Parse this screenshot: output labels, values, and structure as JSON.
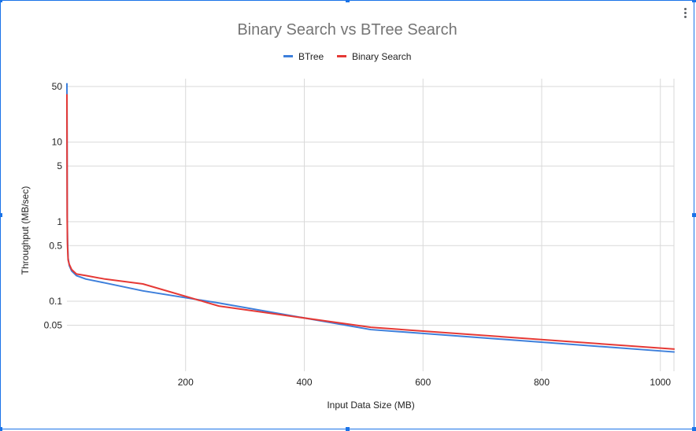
{
  "chart_data": {
    "type": "line",
    "title": "Binary Search vs BTree Search",
    "xlabel": "Input Data Size (MB)",
    "ylabel": "Throughput (MB/sec)",
    "x_scale": "linear",
    "y_scale": "log",
    "xlim": [
      0,
      1024
    ],
    "ylim": [
      0.02,
      60
    ],
    "x_ticks": [
      "200",
      "400",
      "600",
      "800",
      "1000"
    ],
    "x_tick_values": [
      200,
      400,
      600,
      800,
      1000
    ],
    "y_ticks": [
      "50",
      "10",
      "5",
      "1",
      "0.5",
      "0.1",
      "0.05"
    ],
    "y_tick_values": [
      50,
      10,
      5,
      1,
      0.5,
      0.1,
      0.05
    ],
    "grid": true,
    "legend_position": "top",
    "series": [
      {
        "name": "BTree",
        "color": "#3d7fdb",
        "x": [
          0.001,
          0.5,
          1,
          2,
          4,
          8,
          16,
          32,
          64,
          128,
          256,
          512,
          1024
        ],
        "y": [
          55,
          1.2,
          0.6,
          0.35,
          0.28,
          0.24,
          0.21,
          0.19,
          0.17,
          0.135,
          0.095,
          0.044,
          0.023
        ]
      },
      {
        "name": "Binary Search",
        "color": "#e53935",
        "x": [
          0.001,
          0.5,
          1,
          2,
          4,
          8,
          16,
          32,
          64,
          128,
          256,
          512,
          1024
        ],
        "y": [
          40,
          1.0,
          0.5,
          0.33,
          0.29,
          0.25,
          0.22,
          0.21,
          0.19,
          0.165,
          0.087,
          0.047,
          0.025
        ]
      }
    ]
  }
}
